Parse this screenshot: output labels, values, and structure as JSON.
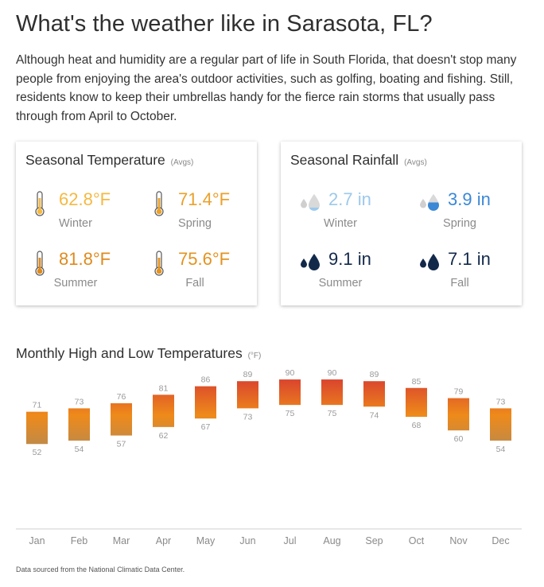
{
  "page": {
    "title": "What's the weather like in Sarasota, FL?",
    "intro": "Although heat and humidity are a regular part of life in South Florida, that doesn't stop many people from enjoying the area's outdoor activities, such as golfing, boating and fishing. Still, residents know to keep their umbrellas handy for the fierce rain storms that usually pass through from April to October.",
    "source": "Data sourced from the National Climatic Data Center."
  },
  "temperature_card": {
    "title": "Seasonal Temperature",
    "avgs": "(Avgs)",
    "icon": "thermometer-icon",
    "seasons": [
      {
        "label": "Winter",
        "value": "62.8°F",
        "color": "#f5b942"
      },
      {
        "label": "Spring",
        "value": "71.4°F",
        "color": "#eaa12b"
      },
      {
        "label": "Summer",
        "value": "81.8°F",
        "color": "#df8a1c"
      },
      {
        "label": "Fall",
        "value": "75.6°F",
        "color": "#e39320"
      }
    ]
  },
  "rainfall_card": {
    "title": "Seasonal Rainfall",
    "avgs": "(Avgs)",
    "icon": "raindrops-icon",
    "seasons": [
      {
        "label": "Winter",
        "value": "2.7 in",
        "color": "#9cc9ec",
        "fill": 0.2
      },
      {
        "label": "Spring",
        "value": "3.9 in",
        "color": "#3a88d6",
        "fill": 0.5
      },
      {
        "label": "Summer",
        "value": "9.1 in",
        "color": "#12294a",
        "fill": 1.0
      },
      {
        "label": "Fall",
        "value": "7.1 in",
        "color": "#12294a",
        "fill": 1.0
      }
    ]
  },
  "chart_data": {
    "type": "bar",
    "title": "Monthly High and Low Temperatures",
    "unit": "(°F)",
    "categories": [
      "Jan",
      "Feb",
      "Mar",
      "Apr",
      "May",
      "Jun",
      "Jul",
      "Aug",
      "Sep",
      "Oct",
      "Nov",
      "Dec"
    ],
    "high": [
      71,
      73,
      76,
      81,
      86,
      89,
      90,
      90,
      89,
      85,
      79,
      73
    ],
    "low": [
      52,
      54,
      57,
      62,
      67,
      73,
      75,
      75,
      74,
      68,
      60,
      54
    ],
    "ylim": [
      2,
      98
    ],
    "grid": false,
    "colors": {
      "hot": "#d9412f",
      "warm": "#ee8a1a",
      "cool": "#c08a48"
    }
  }
}
